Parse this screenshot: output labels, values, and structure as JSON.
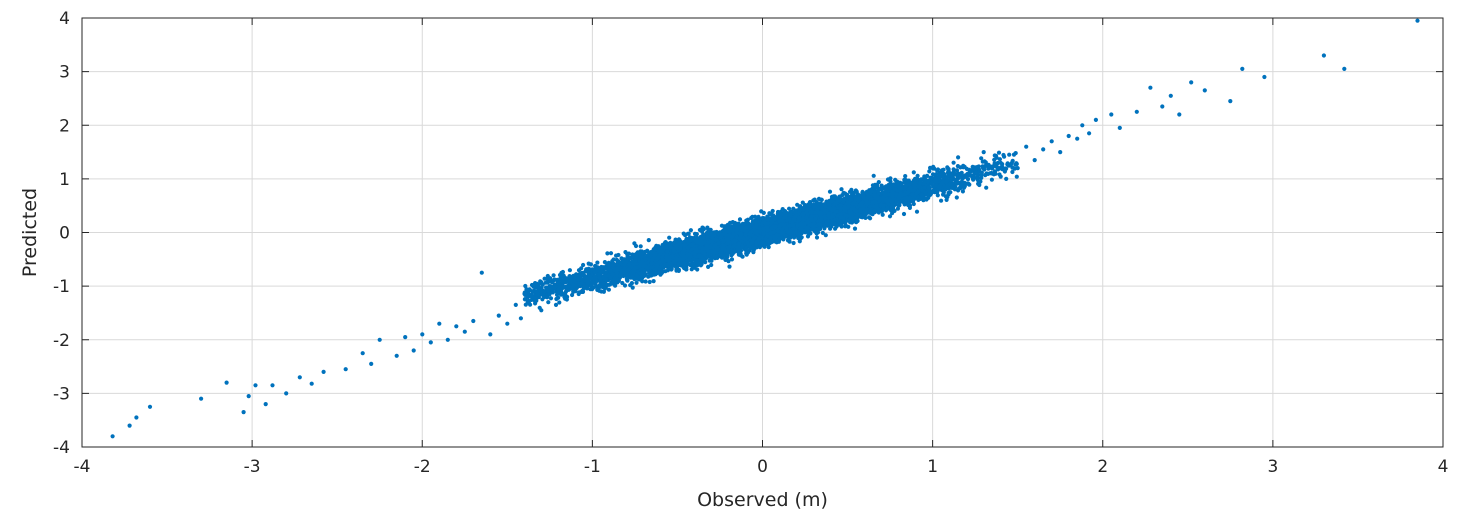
{
  "chart_data": {
    "type": "scatter",
    "title": "",
    "xlabel": "Observed (m)",
    "ylabel": "Predicted",
    "xlim": [
      -4,
      4
    ],
    "ylim": [
      -4,
      4
    ],
    "x_ticks": [
      "-4",
      "-3",
      "-2",
      "-1",
      "0",
      "1",
      "2",
      "3",
      "4"
    ],
    "y_ticks": [
      "-4",
      "-3",
      "-2",
      "-1",
      "0",
      "1",
      "2",
      "3",
      "4"
    ],
    "grid": true,
    "marker_color": "#0072BD",
    "series": [
      {
        "points": [
          [
            -3.82,
            -3.8
          ],
          [
            -3.72,
            -3.6
          ],
          [
            -3.68,
            -3.45
          ],
          [
            -3.6,
            -3.25
          ],
          [
            -3.3,
            -3.1
          ],
          [
            -3.15,
            -2.8
          ],
          [
            -3.05,
            -3.35
          ],
          [
            -3.02,
            -3.05
          ],
          [
            -2.98,
            -2.85
          ],
          [
            -2.92,
            -3.2
          ],
          [
            -2.88,
            -2.85
          ],
          [
            -2.8,
            -3.0
          ],
          [
            -2.72,
            -2.7
          ],
          [
            -2.65,
            -2.82
          ],
          [
            -2.58,
            -2.6
          ],
          [
            -2.45,
            -2.55
          ],
          [
            -2.35,
            -2.25
          ],
          [
            -2.3,
            -2.45
          ],
          [
            -2.25,
            -2.0
          ],
          [
            -2.15,
            -2.3
          ],
          [
            -2.1,
            -1.95
          ],
          [
            -2.05,
            -2.2
          ],
          [
            -2.0,
            -1.9
          ],
          [
            -1.95,
            -2.05
          ],
          [
            -1.9,
            -1.7
          ],
          [
            -1.85,
            -2.0
          ],
          [
            -1.8,
            -1.75
          ],
          [
            -1.75,
            -1.85
          ],
          [
            -1.7,
            -1.65
          ],
          [
            -1.65,
            -0.75
          ],
          [
            -1.6,
            -1.9
          ],
          [
            -1.55,
            -1.55
          ],
          [
            -1.5,
            -1.7
          ],
          [
            -1.45,
            -1.35
          ],
          [
            -1.42,
            -1.6
          ],
          [
            -1.38,
            -1.3
          ],
          [
            -1.35,
            -1.1
          ],
          [
            -1.3,
            -1.45
          ],
          [
            -1.28,
            -1.2
          ],
          [
            -1.25,
            -1.0
          ],
          [
            -1.2,
            -0.95
          ],
          [
            -1.15,
            -1.25
          ],
          [
            1.15,
            1.4
          ],
          [
            1.2,
            1.05
          ],
          [
            1.25,
            1.2
          ],
          [
            1.3,
            1.5
          ],
          [
            1.35,
            1.1
          ],
          [
            1.4,
            1.3
          ],
          [
            1.45,
            1.45
          ],
          [
            1.5,
            1.2
          ],
          [
            1.55,
            1.6
          ],
          [
            1.6,
            1.35
          ],
          [
            1.65,
            1.55
          ],
          [
            1.7,
            1.7
          ],
          [
            1.75,
            1.5
          ],
          [
            1.8,
            1.8
          ],
          [
            1.85,
            1.75
          ],
          [
            1.88,
            2.0
          ],
          [
            1.92,
            1.85
          ],
          [
            1.96,
            2.1
          ],
          [
            2.05,
            2.2
          ],
          [
            2.1,
            1.95
          ],
          [
            2.2,
            2.25
          ],
          [
            2.28,
            2.7
          ],
          [
            2.35,
            2.35
          ],
          [
            2.4,
            2.55
          ],
          [
            2.45,
            2.2
          ],
          [
            2.52,
            2.8
          ],
          [
            2.6,
            2.65
          ],
          [
            2.75,
            2.45
          ],
          [
            2.82,
            3.05
          ],
          [
            2.95,
            2.9
          ],
          [
            3.3,
            3.3
          ],
          [
            3.42,
            3.05
          ],
          [
            3.85,
            3.95
          ]
        ]
      }
    ],
    "dense_band": {
      "x_range": [
        -1.4,
        1.5
      ],
      "slope": 0.86,
      "intercept": 0.02,
      "spread": 0.22,
      "count": 9000
    }
  }
}
